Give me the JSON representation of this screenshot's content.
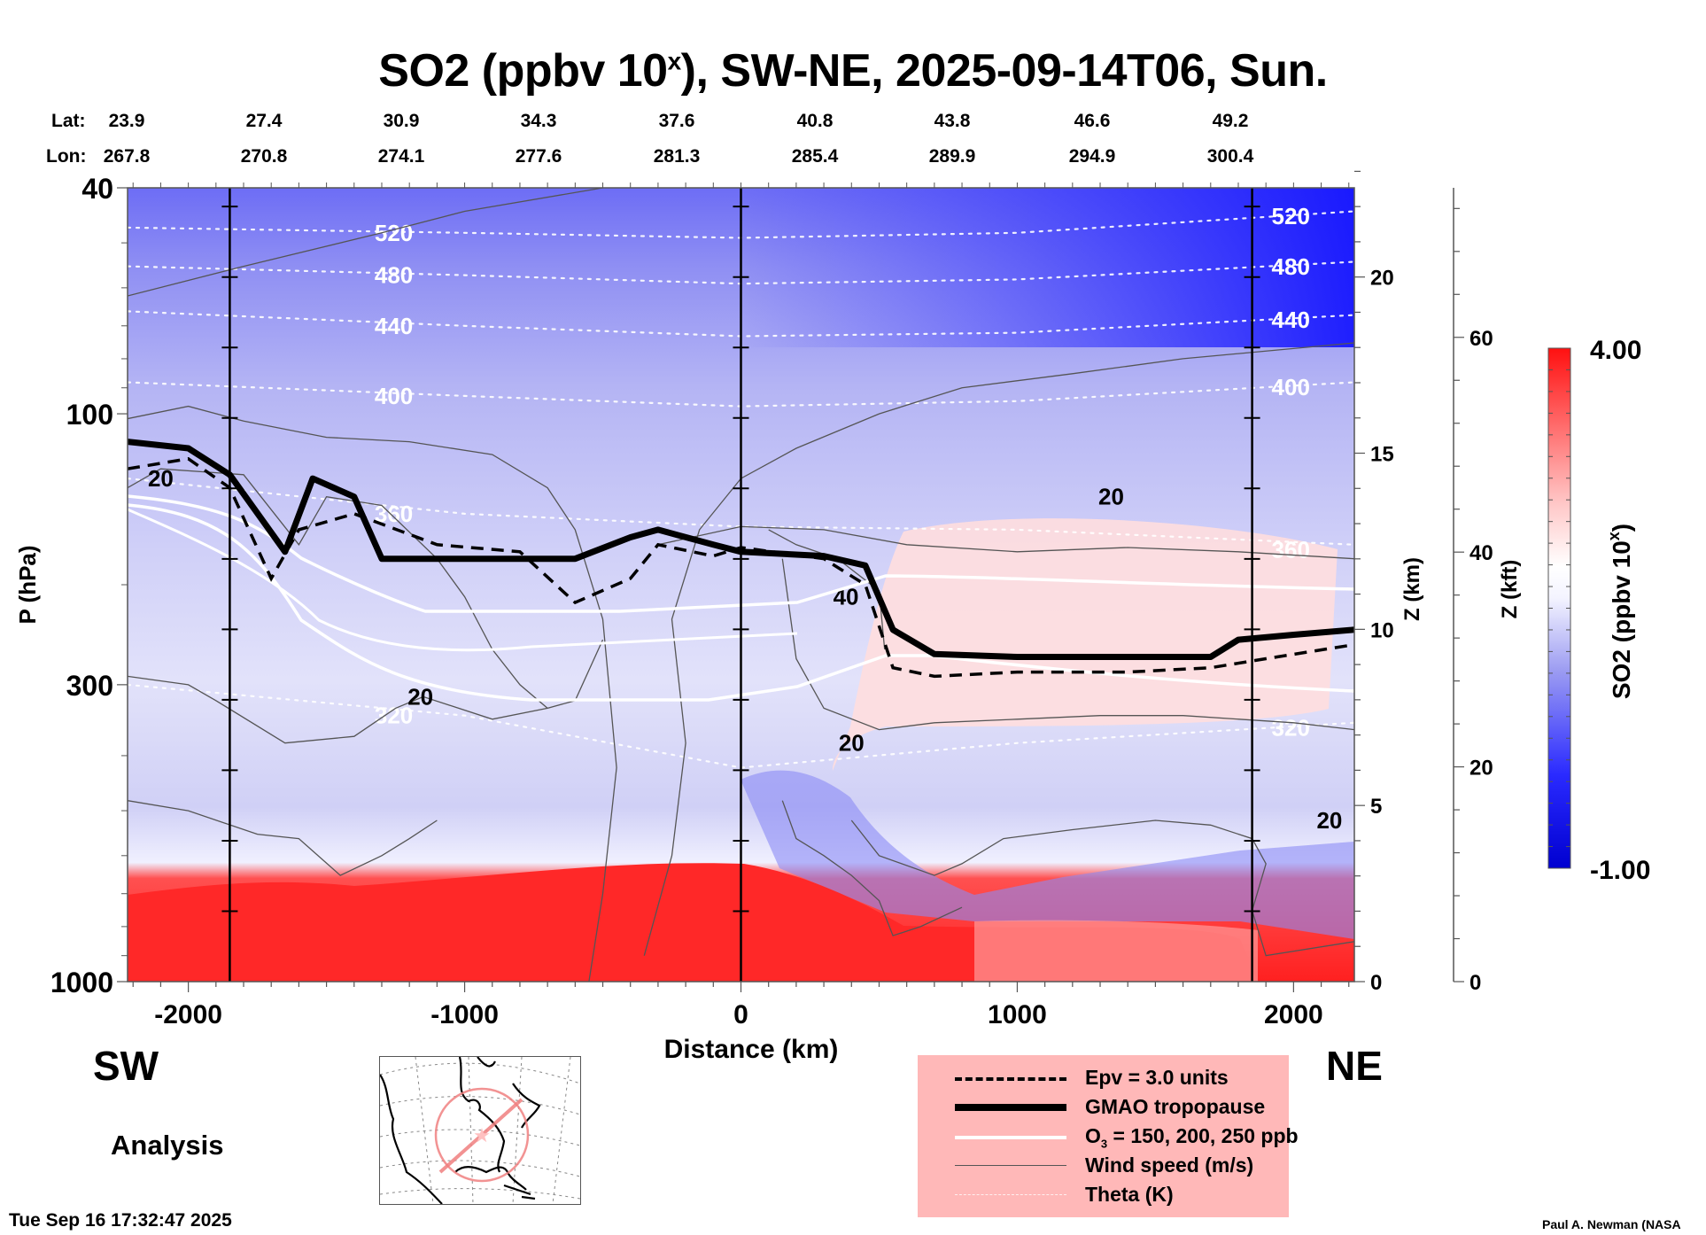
{
  "header": {
    "title_main": "SO2 (ppbv 10",
    "title_sup": "x",
    "title_rest": "), SW-NE, 2025-09-14T06, Sun."
  },
  "latlon": {
    "lat_label": "Lat:",
    "lon_label": "Lon:",
    "lat": [
      "23.9",
      "27.4",
      "30.9",
      "34.3",
      "37.6",
      "40.8",
      "43.8",
      "46.6",
      "49.2"
    ],
    "lon": [
      "267.8",
      "270.8",
      "274.1",
      "277.6",
      "281.3",
      "285.4",
      "289.9",
      "294.9",
      "300.4"
    ]
  },
  "directions": {
    "left": "SW",
    "right": "NE"
  },
  "analysis_label": "Analysis",
  "timestamp": "Tue Sep 16 17:32:47 2025",
  "credit": "Paul A. Newman (NASA",
  "legend": {
    "items": [
      {
        "label": "Epv = 3.0 units",
        "style": "dashed-black"
      },
      {
        "label": "GMAO tropopause",
        "style": "thick-black"
      },
      {
        "label_main": "O",
        "label_sub": "3",
        "label_rest": " = 150, 200, 250 ppb",
        "style": "white"
      },
      {
        "label": "Wind speed (m/s)",
        "style": "thin-gray"
      },
      {
        "label": "Theta (K)",
        "style": "dotted-white"
      }
    ]
  },
  "colors": {
    "legend_bg": "#ffb8b8",
    "high": "#ff1010",
    "mid": "#ffffff",
    "low": "#0000e0",
    "map_track": "#f08080"
  },
  "chart_data": {
    "type": "heatmap",
    "title": "SO2 (ppbv 10^x), SW-NE, 2025-09-14T06, Sun.",
    "xlabel": "Distance (km)",
    "ylabel": "P (hPa)",
    "y2label": "Z (km)",
    "y3label": "Z (kft)",
    "colorbar_label": "SO2 (ppbv 10^x)",
    "xlim": [
      -2220,
      2220
    ],
    "ylim": [
      1000,
      40
    ],
    "yscale": "log",
    "xticks": [
      -2000,
      -1000,
      0,
      1000,
      2000
    ],
    "xtick_labels": [
      "-2000",
      "-1000",
      "0",
      "1000",
      "2000"
    ],
    "yticks": [
      40,
      100,
      300,
      1000
    ],
    "ytick_labels": [
      "40",
      "100",
      "300",
      "1000"
    ],
    "y_minor_ticks": [
      50,
      60,
      70,
      80,
      90,
      200,
      400,
      500,
      600,
      700,
      800,
      900
    ],
    "z_km_ticks": [
      0,
      5,
      10,
      15,
      20
    ],
    "z_km_tick_labels": [
      "0",
      "5",
      "10",
      "15",
      "20"
    ],
    "z_kft_ticks": [
      0,
      20,
      40,
      60
    ],
    "z_kft_tick_labels": [
      "0",
      "20",
      "40",
      "60"
    ],
    "colorbar": {
      "min": -1.0,
      "max": 4.0,
      "min_label": "-1.00",
      "max_label": "4.00",
      "levels": 24
    },
    "vertical_markers_km": [
      -1850,
      0,
      1850
    ],
    "theta_contours": [
      {
        "value": 520,
        "label": "520",
        "points": [
          [
            -2220,
            47
          ],
          [
            -1000,
            48
          ],
          [
            0,
            49
          ],
          [
            1000,
            48
          ],
          [
            2220,
            44
          ]
        ]
      },
      {
        "value": 480,
        "label": "480",
        "points": [
          [
            -2220,
            55
          ],
          [
            -1000,
            57
          ],
          [
            0,
            59
          ],
          [
            1000,
            58
          ],
          [
            2220,
            54
          ]
        ]
      },
      {
        "value": 440,
        "label": "440",
        "points": [
          [
            -2220,
            66
          ],
          [
            -1000,
            70
          ],
          [
            0,
            73
          ],
          [
            1000,
            72
          ],
          [
            2220,
            67
          ]
        ]
      },
      {
        "value": 400,
        "label": "400",
        "points": [
          [
            -2220,
            88
          ],
          [
            -1000,
            93
          ],
          [
            0,
            97
          ],
          [
            1000,
            95
          ],
          [
            2220,
            88
          ]
        ]
      },
      {
        "value": 360,
        "label": "360",
        "points": [
          [
            -2220,
            130
          ],
          [
            -1000,
            150
          ],
          [
            0,
            158
          ],
          [
            1000,
            160
          ],
          [
            2220,
            170
          ]
        ]
      },
      {
        "value": 320,
        "label": "320",
        "points": [
          [
            -2220,
            300
          ],
          [
            -1000,
            340
          ],
          [
            0,
            420
          ],
          [
            1000,
            380
          ],
          [
            2220,
            350
          ]
        ]
      }
    ],
    "tropopause_hpa": [
      [
        -2220,
        112
      ],
      [
        -2000,
        115
      ],
      [
        -1850,
        128
      ],
      [
        -1650,
        175
      ],
      [
        -1550,
        130
      ],
      [
        -1400,
        140
      ],
      [
        -1300,
        180
      ],
      [
        -1000,
        180
      ],
      [
        -600,
        180
      ],
      [
        -400,
        165
      ],
      [
        -300,
        160
      ],
      [
        -100,
        170
      ],
      [
        0,
        175
      ],
      [
        300,
        178
      ],
      [
        450,
        185
      ],
      [
        550,
        240
      ],
      [
        700,
        265
      ],
      [
        1000,
        268
      ],
      [
        1400,
        268
      ],
      [
        1700,
        268
      ],
      [
        1800,
        250
      ],
      [
        2000,
        245
      ],
      [
        2220,
        240
      ]
    ],
    "epv_hpa": [
      [
        -2220,
        125
      ],
      [
        -2000,
        120
      ],
      [
        -1850,
        135
      ],
      [
        -1700,
        195
      ],
      [
        -1600,
        160
      ],
      [
        -1400,
        150
      ],
      [
        -1100,
        170
      ],
      [
        -800,
        175
      ],
      [
        -600,
        215
      ],
      [
        -400,
        195
      ],
      [
        -300,
        170
      ],
      [
        -100,
        178
      ],
      [
        0,
        172
      ],
      [
        300,
        180
      ],
      [
        450,
        200
      ],
      [
        550,
        280
      ],
      [
        700,
        290
      ],
      [
        1000,
        285
      ],
      [
        1400,
        285
      ],
      [
        1700,
        280
      ],
      [
        1900,
        270
      ],
      [
        2220,
        255
      ]
    ],
    "wind_labels": [
      {
        "value": 20,
        "x_km": -2100,
        "p": 130
      },
      {
        "value": 20,
        "x_km": -1160,
        "p": 315
      },
      {
        "value": 20,
        "x_km": 1340,
        "p": 140
      },
      {
        "value": 20,
        "x_km": 400,
        "p": 380
      },
      {
        "value": 40,
        "x_km": 380,
        "p": 210
      },
      {
        "value": 20,
        "x_km": 2130,
        "p": 520
      }
    ]
  }
}
